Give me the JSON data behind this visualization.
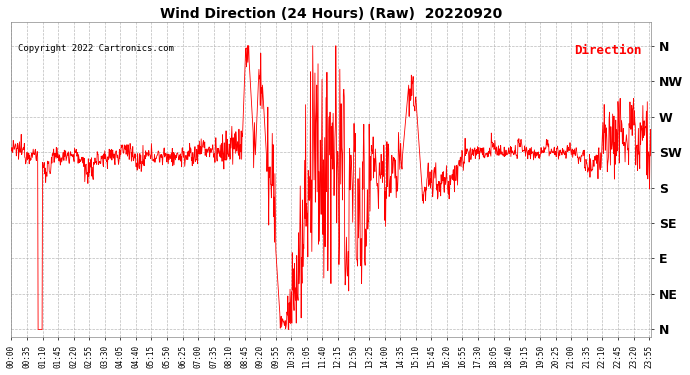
{
  "title": "Wind Direction (24 Hours) (Raw)  20220920",
  "copyright": "Copyright 2022 Cartronics.com",
  "legend_label": "Direction",
  "background_color": "#ffffff",
  "plot_background_color": "#ffffff",
  "grid_color": "#aaaaaa",
  "line_color": "#ff0000",
  "title_color": "#000000",
  "copyright_color": "#000000",
  "legend_color": "#ff0000",
  "y_labels": [
    "N",
    "NW",
    "W",
    "SW",
    "S",
    "SE",
    "E",
    "NE",
    "N"
  ],
  "y_ticks": [
    360,
    315,
    270,
    225,
    180,
    135,
    90,
    45,
    0
  ],
  "ylim": [
    -10,
    390
  ],
  "xlim": [
    0,
    1440
  ],
  "total_minutes": 1440,
  "x_tick_interval": 35,
  "figsize": [
    6.9,
    3.75
  ],
  "dpi": 100
}
